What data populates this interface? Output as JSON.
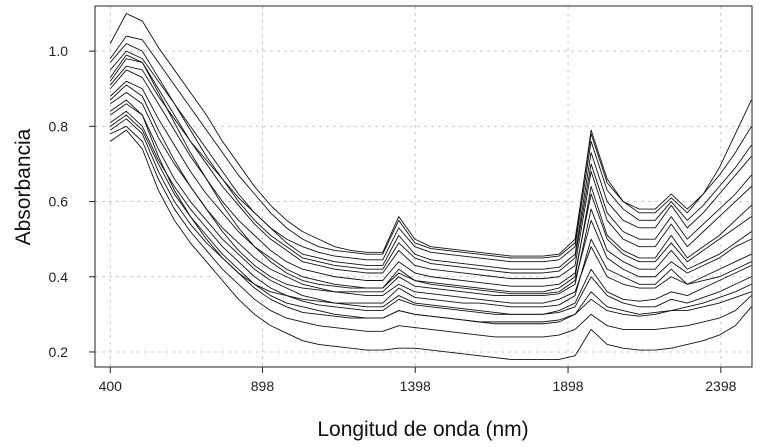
{
  "chart_data": {
    "type": "line",
    "title": "",
    "xlabel": "Longitud de onda (nm)",
    "ylabel": "Absorbancia",
    "xlim": [
      350,
      2500
    ],
    "ylim": [
      0.16,
      1.12
    ],
    "xticks": [
      400,
      898,
      1398,
      1898,
      2398
    ],
    "yticks": [
      0.2,
      0.4,
      0.6,
      0.8,
      1.0
    ],
    "xtick_labels": [
      "400",
      "898",
      "1398",
      "1898",
      "2398"
    ],
    "ytick_labels": [
      "0.2",
      "0.4",
      "0.6",
      "0.8",
      "1.0"
    ],
    "grid": true,
    "legend": "none",
    "x_range": [
      400,
      2498
    ],
    "series": [
      {
        "values": [
          0.76,
          0.79,
          0.74,
          0.63,
          0.55,
          0.49,
          0.44,
          0.39,
          0.34,
          0.3,
          0.27,
          0.25,
          0.23,
          0.22,
          0.215,
          0.21,
          0.205,
          0.205,
          0.21,
          0.21,
          0.205,
          0.2,
          0.195,
          0.19,
          0.185,
          0.18,
          0.18,
          0.18,
          0.18,
          0.19,
          0.26,
          0.22,
          0.21,
          0.205,
          0.205,
          0.21,
          0.22,
          0.23,
          0.245,
          0.27,
          0.32
        ]
      },
      {
        "values": [
          0.78,
          0.8,
          0.76,
          0.66,
          0.58,
          0.52,
          0.47,
          0.42,
          0.38,
          0.34,
          0.31,
          0.29,
          0.28,
          0.27,
          0.265,
          0.26,
          0.255,
          0.255,
          0.27,
          0.265,
          0.26,
          0.255,
          0.25,
          0.245,
          0.24,
          0.24,
          0.24,
          0.24,
          0.245,
          0.26,
          0.3,
          0.27,
          0.26,
          0.26,
          0.26,
          0.265,
          0.27,
          0.28,
          0.29,
          0.31,
          0.35
        ]
      },
      {
        "values": [
          0.8,
          0.83,
          0.79,
          0.7,
          0.62,
          0.56,
          0.51,
          0.46,
          0.42,
          0.38,
          0.35,
          0.33,
          0.32,
          0.31,
          0.3,
          0.295,
          0.29,
          0.29,
          0.31,
          0.3,
          0.295,
          0.29,
          0.285,
          0.28,
          0.275,
          0.275,
          0.275,
          0.275,
          0.28,
          0.3,
          0.36,
          0.32,
          0.31,
          0.3,
          0.305,
          0.31,
          0.32,
          0.33,
          0.345,
          0.36,
          0.38
        ]
      },
      {
        "values": [
          0.83,
          0.86,
          0.83,
          0.74,
          0.66,
          0.6,
          0.55,
          0.5,
          0.46,
          0.42,
          0.39,
          0.37,
          0.35,
          0.34,
          0.33,
          0.325,
          0.32,
          0.32,
          0.35,
          0.33,
          0.325,
          0.32,
          0.315,
          0.31,
          0.305,
          0.3,
          0.3,
          0.3,
          0.31,
          0.33,
          0.42,
          0.36,
          0.34,
          0.335,
          0.34,
          0.36,
          0.35,
          0.37,
          0.39,
          0.41,
          0.43
        ]
      },
      {
        "values": [
          0.86,
          0.89,
          0.86,
          0.77,
          0.7,
          0.64,
          0.58,
          0.53,
          0.49,
          0.45,
          0.42,
          0.4,
          0.38,
          0.37,
          0.36,
          0.355,
          0.35,
          0.35,
          0.38,
          0.36,
          0.355,
          0.35,
          0.345,
          0.34,
          0.335,
          0.33,
          0.33,
          0.33,
          0.34,
          0.36,
          0.48,
          0.4,
          0.38,
          0.37,
          0.37,
          0.4,
          0.38,
          0.4,
          0.42,
          0.44,
          0.46
        ]
      },
      {
        "values": [
          0.88,
          0.92,
          0.9,
          0.82,
          0.75,
          0.68,
          0.62,
          0.57,
          0.52,
          0.48,
          0.45,
          0.42,
          0.4,
          0.39,
          0.38,
          0.375,
          0.37,
          0.37,
          0.41,
          0.39,
          0.38,
          0.375,
          0.37,
          0.365,
          0.36,
          0.355,
          0.355,
          0.355,
          0.36,
          0.39,
          0.55,
          0.45,
          0.42,
          0.4,
          0.4,
          0.44,
          0.41,
          0.43,
          0.45,
          0.48,
          0.5
        ]
      },
      {
        "values": [
          0.9,
          0.95,
          0.93,
          0.86,
          0.79,
          0.72,
          0.66,
          0.6,
          0.55,
          0.51,
          0.47,
          0.44,
          0.42,
          0.41,
          0.4,
          0.395,
          0.39,
          0.39,
          0.44,
          0.41,
          0.4,
          0.395,
          0.39,
          0.385,
          0.38,
          0.375,
          0.375,
          0.375,
          0.38,
          0.41,
          0.62,
          0.5,
          0.46,
          0.44,
          0.44,
          0.49,
          0.44,
          0.47,
          0.5,
          0.53,
          0.56
        ]
      },
      {
        "values": [
          0.92,
          0.98,
          0.97,
          0.9,
          0.83,
          0.76,
          0.7,
          0.64,
          0.59,
          0.54,
          0.5,
          0.47,
          0.44,
          0.43,
          0.42,
          0.415,
          0.41,
          0.41,
          0.47,
          0.43,
          0.42,
          0.415,
          0.41,
          0.405,
          0.4,
          0.395,
          0.395,
          0.395,
          0.4,
          0.43,
          0.68,
          0.55,
          0.5,
          0.48,
          0.48,
          0.54,
          0.48,
          0.52,
          0.56,
          0.6,
          0.64
        ]
      },
      {
        "values": [
          0.95,
          1.0,
          0.98,
          0.92,
          0.86,
          0.8,
          0.74,
          0.68,
          0.62,
          0.57,
          0.53,
          0.49,
          0.46,
          0.45,
          0.44,
          0.435,
          0.43,
          0.43,
          0.51,
          0.46,
          0.445,
          0.44,
          0.435,
          0.43,
          0.425,
          0.42,
          0.42,
          0.42,
          0.425,
          0.46,
          0.73,
          0.6,
          0.55,
          0.53,
          0.53,
          0.59,
          0.53,
          0.57,
          0.62,
          0.67,
          0.72
        ]
      },
      {
        "values": [
          0.98,
          1.04,
          1.03,
          0.97,
          0.91,
          0.85,
          0.79,
          0.73,
          0.67,
          0.62,
          0.57,
          0.53,
          0.5,
          0.48,
          0.47,
          0.465,
          0.46,
          0.46,
          0.55,
          0.49,
          0.475,
          0.47,
          0.465,
          0.46,
          0.455,
          0.45,
          0.45,
          0.45,
          0.455,
          0.49,
          0.79,
          0.66,
          0.6,
          0.58,
          0.58,
          0.62,
          0.58,
          0.62,
          0.67,
          0.73,
          0.8
        ]
      },
      {
        "values": [
          1.02,
          1.1,
          1.08,
          1.01,
          0.95,
          0.89,
          0.83,
          0.76,
          0.7,
          0.64,
          0.59,
          0.55,
          0.52,
          0.5,
          0.48,
          0.47,
          0.465,
          0.465,
          0.56,
          0.5,
          0.48,
          0.475,
          0.47,
          0.465,
          0.46,
          0.455,
          0.455,
          0.455,
          0.46,
          0.5,
          0.78,
          0.65,
          0.6,
          0.57,
          0.57,
          0.61,
          0.57,
          0.62,
          0.69,
          0.78,
          0.87
        ]
      },
      {
        "values": [
          0.84,
          0.87,
          0.83,
          0.72,
          0.63,
          0.56,
          0.5,
          0.45,
          0.41,
          0.38,
          0.36,
          0.35,
          0.34,
          0.335,
          0.33,
          0.33,
          0.33,
          0.33,
          0.37,
          0.345,
          0.34,
          0.335,
          0.33,
          0.33,
          0.325,
          0.32,
          0.32,
          0.32,
          0.325,
          0.35,
          0.5,
          0.42,
          0.4,
          0.38,
          0.38,
          0.42,
          0.38,
          0.39,
          0.4,
          0.42,
          0.44
        ]
      },
      {
        "values": [
          0.87,
          0.91,
          0.88,
          0.79,
          0.71,
          0.64,
          0.58,
          0.52,
          0.47,
          0.43,
          0.4,
          0.38,
          0.37,
          0.365,
          0.36,
          0.36,
          0.36,
          0.36,
          0.4,
          0.375,
          0.37,
          0.365,
          0.36,
          0.355,
          0.35,
          0.35,
          0.35,
          0.35,
          0.355,
          0.38,
          0.58,
          0.47,
          0.44,
          0.42,
          0.42,
          0.47,
          0.42,
          0.44,
          0.46,
          0.49,
          0.52
        ]
      },
      {
        "values": [
          0.93,
          0.99,
          0.97,
          0.89,
          0.81,
          0.73,
          0.66,
          0.59,
          0.53,
          0.48,
          0.44,
          0.41,
          0.39,
          0.38,
          0.375,
          0.37,
          0.37,
          0.37,
          0.42,
          0.39,
          0.385,
          0.38,
          0.375,
          0.37,
          0.365,
          0.36,
          0.36,
          0.36,
          0.37,
          0.4,
          0.64,
          0.51,
          0.47,
          0.45,
          0.45,
          0.51,
          0.45,
          0.48,
          0.51,
          0.55,
          0.59
        ]
      },
      {
        "values": [
          0.79,
          0.82,
          0.78,
          0.68,
          0.6,
          0.54,
          0.49,
          0.45,
          0.41,
          0.37,
          0.34,
          0.32,
          0.305,
          0.3,
          0.295,
          0.29,
          0.29,
          0.29,
          0.31,
          0.3,
          0.295,
          0.29,
          0.285,
          0.28,
          0.28,
          0.28,
          0.28,
          0.28,
          0.285,
          0.3,
          0.34,
          0.31,
          0.3,
          0.295,
          0.3,
          0.31,
          0.31,
          0.32,
          0.33,
          0.345,
          0.36
        ]
      },
      {
        "values": [
          0.91,
          0.96,
          0.95,
          0.88,
          0.82,
          0.76,
          0.71,
          0.66,
          0.61,
          0.57,
          0.53,
          0.5,
          0.48,
          0.465,
          0.455,
          0.45,
          0.445,
          0.445,
          0.53,
          0.48,
          0.465,
          0.46,
          0.455,
          0.45,
          0.445,
          0.44,
          0.44,
          0.44,
          0.445,
          0.48,
          0.76,
          0.63,
          0.58,
          0.55,
          0.55,
          0.6,
          0.55,
          0.59,
          0.64,
          0.69,
          0.75
        ]
      },
      {
        "values": [
          0.97,
          1.02,
          1.0,
          0.93,
          0.86,
          0.79,
          0.72,
          0.66,
          0.6,
          0.55,
          0.51,
          0.48,
          0.45,
          0.44,
          0.43,
          0.425,
          0.42,
          0.42,
          0.49,
          0.45,
          0.435,
          0.43,
          0.425,
          0.42,
          0.415,
          0.41,
          0.41,
          0.41,
          0.415,
          0.45,
          0.7,
          0.57,
          0.52,
          0.5,
          0.5,
          0.56,
          0.5,
          0.54,
          0.58,
          0.62,
          0.67
        ]
      },
      {
        "values": [
          0.81,
          0.84,
          0.8,
          0.71,
          0.64,
          0.58,
          0.53,
          0.48,
          0.44,
          0.4,
          0.37,
          0.35,
          0.335,
          0.325,
          0.32,
          0.315,
          0.31,
          0.31,
          0.34,
          0.325,
          0.32,
          0.315,
          0.31,
          0.305,
          0.3,
          0.3,
          0.3,
          0.3,
          0.305,
          0.32,
          0.4,
          0.35,
          0.33,
          0.32,
          0.32,
          0.34,
          0.33,
          0.345,
          0.36,
          0.38,
          0.4
        ]
      }
    ]
  }
}
